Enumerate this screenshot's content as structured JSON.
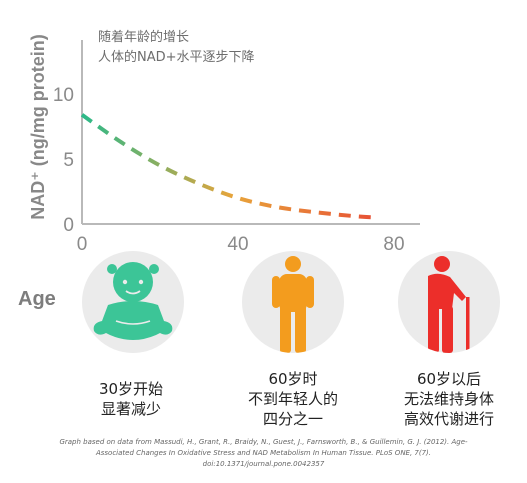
{
  "chart_data": {
    "type": "line",
    "title": "随着年龄的增长",
    "subtitle": "人体的NAD+水平逐步下降",
    "xlabel": "Age",
    "ylabel": "NAD⁺ (ng/mg protein)",
    "xlim": [
      0,
      90
    ],
    "ylim": [
      0,
      15
    ],
    "x_ticks": [
      "0",
      "40",
      "80"
    ],
    "y_ticks": [
      "0",
      "5",
      "10"
    ],
    "grid": false,
    "line_style": "dashed",
    "gradient_colors": [
      "#2bb989",
      "#e8a43a",
      "#e74a35"
    ],
    "series": [
      {
        "x": [
          0,
          10,
          20,
          30,
          40,
          50,
          60,
          70,
          75
        ],
        "values": [
          8.4,
          6.3,
          4.5,
          3.1,
          2.0,
          1.3,
          0.9,
          0.6,
          0.5
        ]
      }
    ]
  },
  "stages": [
    {
      "lines": [
        "30岁开始",
        "显著减少"
      ],
      "icon": "baby-icon",
      "color": "#3cc597"
    },
    {
      "lines": [
        "60岁时",
        "不到年轻人的",
        "四分之一"
      ],
      "icon": "adult-icon",
      "color": "#f39c1e"
    },
    {
      "lines": [
        "60岁以后",
        "无法维持身体",
        "高效代谢进行"
      ],
      "icon": "elderly-icon",
      "color": "#ec2e2a"
    }
  ],
  "source": [
    "Graph based on data from Massudi, H., Grant, R., Braidy, N., Guest, J., Farnsworth, B., & Guillemin, G. J. (2012). Age-",
    "Associated Changes In Oxidative Stress and NAD Metabolism In Human Tissue. PLoS ONE, 7(7).",
    "doi:10.1371/journal.pone.0042357"
  ]
}
